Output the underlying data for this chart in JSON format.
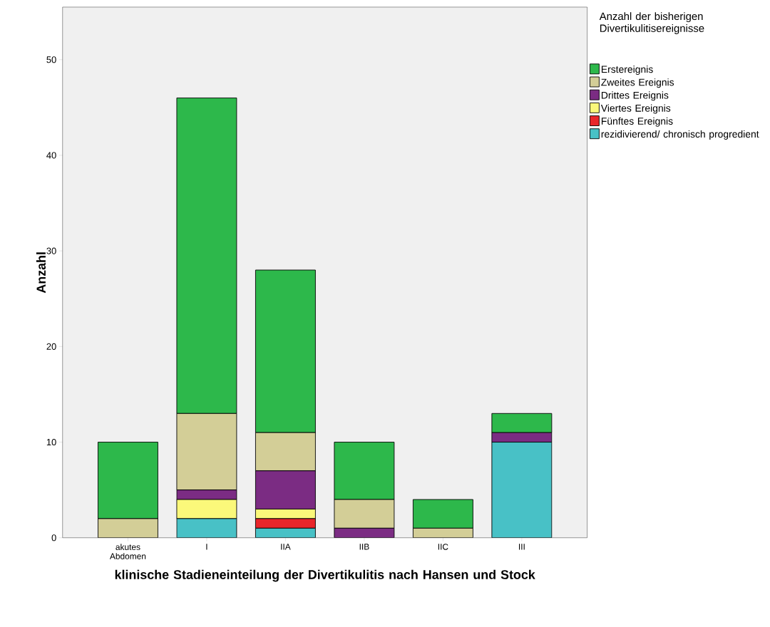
{
  "chart_data": {
    "type": "bar",
    "stacked": true,
    "xlabel": "klinische Stadieneinteilung der Divertikulitis nach Hansen und Stock",
    "ylabel": "Anzahl",
    "legend_title": "Anzahl der bisherigen Divertikulitisereignisse",
    "legend": "right",
    "categories": [
      "akutes Abdomen",
      "I",
      "IIA",
      "IIB",
      "IIC",
      "III"
    ],
    "ylim": [
      0,
      55.5
    ],
    "yticks": [
      0,
      10,
      20,
      30,
      40,
      50
    ],
    "series": [
      {
        "name": "rezidivierend/ chronisch progredient",
        "color": "#48c1c6",
        "values": [
          0,
          2,
          1,
          0,
          0,
          10
        ]
      },
      {
        "name": "Fünftes Ereignis",
        "color": "#e8262b",
        "values": [
          0,
          0,
          1,
          0,
          0,
          0
        ]
      },
      {
        "name": "Viertes Ereignis",
        "color": "#fbf87a",
        "values": [
          0,
          2,
          1,
          0,
          0,
          0
        ]
      },
      {
        "name": "Drittes Ereignis",
        "color": "#7b2c83",
        "values": [
          0,
          1,
          4,
          1,
          0,
          1
        ]
      },
      {
        "name": "Zweites Ereignis",
        "color": "#d3ce97",
        "values": [
          2,
          8,
          4,
          3,
          1,
          0
        ]
      },
      {
        "name": "Erstereignis",
        "color": "#2db84b",
        "values": [
          8,
          33,
          17,
          6,
          3,
          2
        ]
      }
    ]
  }
}
